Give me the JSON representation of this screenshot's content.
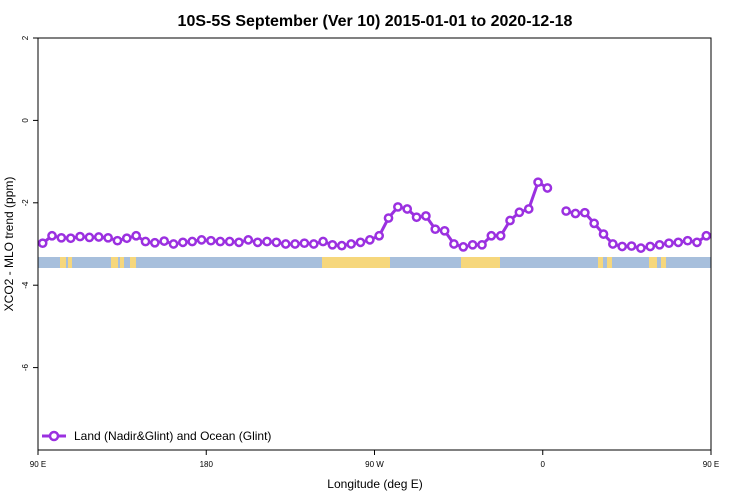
{
  "chart_data": {
    "type": "line",
    "title": "10S-5S September (Ver 10)   2015-01-01 to 2020-12-18",
    "xlabel": "Longitude (deg E)",
    "ylabel": "XCO2 - MLO trend (ppm)",
    "xlim": [
      90,
      450
    ],
    "ylim": [
      -8,
      2
    ],
    "x_ticks": [
      {
        "value": 90,
        "label": "90 E"
      },
      {
        "value": 180,
        "label": "180"
      },
      {
        "value": 270,
        "label": "90 W"
      },
      {
        "value": 360,
        "label": "0"
      },
      {
        "value": 450,
        "label": "90 E"
      }
    ],
    "y_ticks": [
      {
        "value": 2,
        "label": "2"
      },
      {
        "value": 0,
        "label": "0"
      },
      {
        "value": -2,
        "label": "-2"
      },
      {
        "value": -4,
        "label": "-4"
      },
      {
        "value": -6,
        "label": "-6"
      }
    ],
    "series": [
      {
        "name": "Land (Nadir&Glint) and Ocean (Glint)",
        "color": "#9b30e0",
        "x": [
          92.5,
          97.5,
          102.5,
          107.5,
          112.5,
          117.5,
          122.5,
          127.5,
          132.5,
          137.5,
          142.5,
          147.5,
          152.5,
          157.5,
          162.5,
          167.5,
          172.5,
          177.5,
          182.5,
          187.5,
          192.5,
          197.5,
          202.5,
          207.5,
          212.5,
          217.5,
          222.5,
          227.5,
          232.5,
          237.5,
          242.5,
          247.5,
          252.5,
          257.5,
          262.5,
          267.5,
          272.5,
          277.5,
          282.5,
          287.5,
          292.5,
          297.5,
          302.5,
          307.5,
          312.5,
          317.5,
          322.5,
          327.5,
          332.5,
          337.5,
          342.5,
          347.5,
          352.5,
          357.5,
          362.5,
          372.5,
          377.5,
          382.5,
          387.5,
          392.5,
          397.5,
          402.5,
          407.5,
          412.5,
          417.5,
          422.5,
          427.5,
          432.5,
          437.5,
          442.5,
          447.5
        ],
        "y": [
          -2.98,
          -2.8,
          -2.85,
          -2.86,
          -2.82,
          -2.84,
          -2.83,
          -2.85,
          -2.92,
          -2.86,
          -2.8,
          -2.94,
          -2.97,
          -2.93,
          -3.0,
          -2.96,
          -2.94,
          -2.9,
          -2.92,
          -2.94,
          -2.94,
          -2.96,
          -2.9,
          -2.96,
          -2.94,
          -2.96,
          -3.0,
          -3.0,
          -2.98,
          -3.0,
          -2.94,
          -3.02,
          -3.04,
          -3.0,
          -2.96,
          -2.9,
          -2.8,
          -2.37,
          -2.1,
          -2.15,
          -2.35,
          -2.32,
          -2.64,
          -2.68,
          -3.0,
          -3.07,
          -3.02,
          -3.02,
          -2.8,
          -2.8,
          -2.43,
          -2.23,
          -2.15,
          -1.5,
          -1.64,
          -2.2,
          -2.26,
          -2.24,
          -2.5,
          -2.76,
          -3.0,
          -3.06,
          -3.05,
          -3.1,
          -3.06,
          -3.02,
          -2.98,
          -2.96,
          -2.92,
          -2.96,
          -2.8
        ]
      }
    ],
    "legend_position": "bottom-left",
    "grid": false
  }
}
